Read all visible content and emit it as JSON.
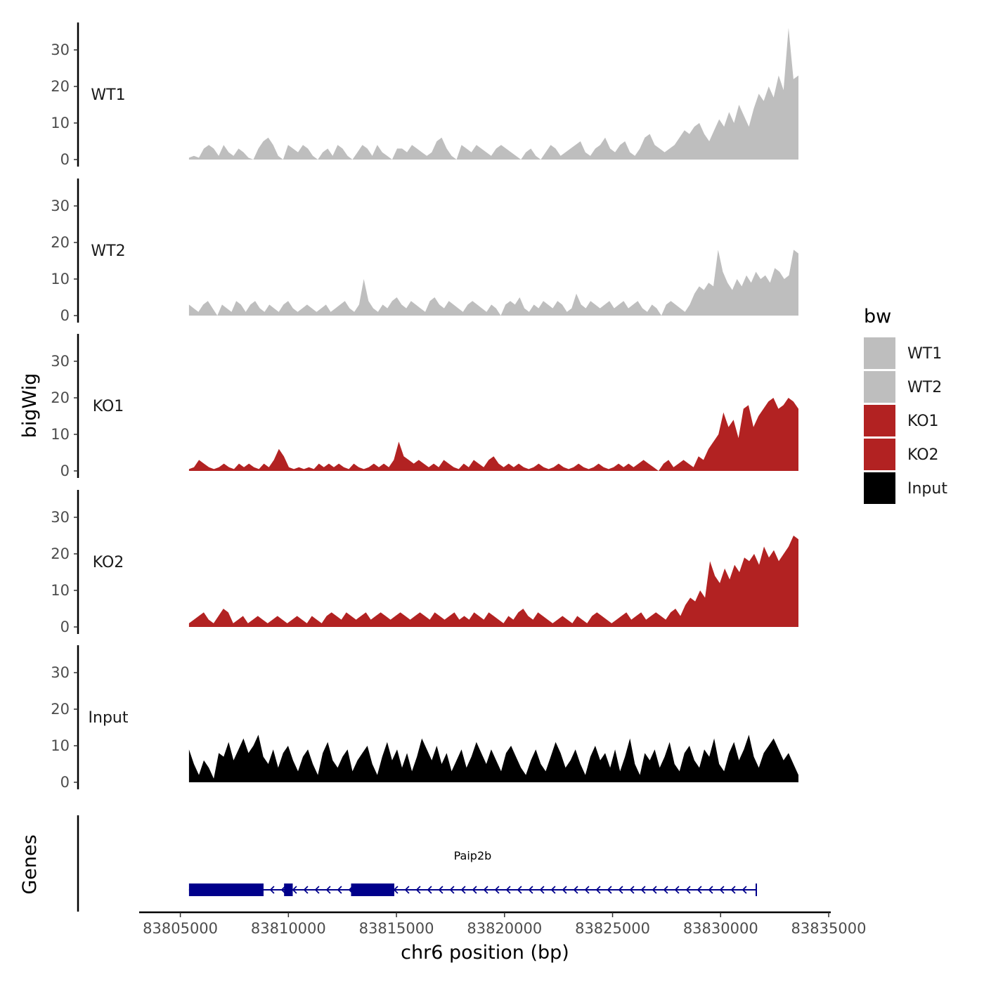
{
  "chart_data": {
    "type": "area",
    "chromosome": "chr6",
    "ylabel": "bigWig",
    "genes_label": "Genes",
    "xlabel": "chr6 position (bp)",
    "xlim": [
      83804200,
      83835000
    ],
    "ylim": [
      0,
      37
    ],
    "x_ticks": [
      83805000,
      83810000,
      83815000,
      83820000,
      83825000,
      83830000,
      83835000
    ],
    "x_tick_labels": [
      "83805000",
      "83810000",
      "83815000",
      "83820000",
      "83825000",
      "83830000",
      "83835000"
    ],
    "y_ticks": [
      0,
      10,
      20,
      30
    ],
    "y_tick_labels": [
      "0",
      "10",
      "20",
      "30"
    ],
    "track_range": [
      83805400,
      83833600
    ],
    "legend": {
      "title": "bw",
      "entries": [
        {
          "label": "WT1",
          "color": "#bebebe"
        },
        {
          "label": "WT2",
          "color": "#bebebe"
        },
        {
          "label": "KO1",
          "color": "#b22222"
        },
        {
          "label": "KO2",
          "color": "#b22222"
        },
        {
          "label": "Input",
          "color": "#000000"
        }
      ]
    },
    "tracks": [
      {
        "name": "WT1",
        "color": "#bebebe",
        "values": [
          0.5,
          1,
          0.5,
          3,
          4,
          3,
          1,
          4,
          2,
          1,
          3,
          2,
          0.5,
          0,
          3,
          5,
          6,
          4,
          1,
          0,
          4,
          3,
          2,
          4,
          3,
          1,
          0,
          2,
          3,
          1,
          4,
          3,
          1,
          0,
          2,
          4,
          3,
          1,
          4,
          2,
          1,
          0,
          3,
          3,
          2,
          4,
          3,
          2,
          1,
          2,
          5,
          6,
          3,
          1,
          0,
          4,
          3,
          2,
          4,
          3,
          2,
          1,
          3,
          4,
          3,
          2,
          1,
          0,
          2,
          3,
          1,
          0,
          2,
          4,
          3,
          1,
          2,
          3,
          4,
          5,
          2,
          1,
          3,
          4,
          6,
          3,
          2,
          4,
          5,
          2,
          1,
          3,
          6,
          7,
          4,
          3,
          2,
          3,
          4,
          6,
          8,
          7,
          9,
          10,
          7,
          5,
          8,
          11,
          9,
          13,
          10,
          15,
          12,
          9,
          14,
          18,
          16,
          20,
          17,
          23,
          19,
          36,
          22,
          23
        ]
      },
      {
        "name": "WT2",
        "color": "#bebebe",
        "values": [
          3,
          2,
          1,
          3,
          4,
          2,
          0,
          3,
          2,
          1,
          4,
          3,
          1,
          3,
          4,
          2,
          1,
          3,
          2,
          1,
          3,
          4,
          2,
          1,
          2,
          3,
          2,
          1,
          2,
          3,
          1,
          2,
          3,
          4,
          2,
          1,
          3,
          10,
          4,
          2,
          1,
          3,
          2,
          4,
          5,
          3,
          2,
          4,
          3,
          2,
          1,
          4,
          5,
          3,
          2,
          4,
          3,
          2,
          1,
          3,
          4,
          3,
          2,
          1,
          3,
          2,
          0,
          3,
          4,
          3,
          5,
          2,
          1,
          3,
          2,
          4,
          3,
          2,
          4,
          3,
          1,
          2,
          6,
          3,
          2,
          4,
          3,
          2,
          3,
          4,
          2,
          3,
          4,
          2,
          3,
          4,
          2,
          1,
          3,
          2,
          0,
          3,
          4,
          3,
          2,
          1,
          3,
          6,
          8,
          7,
          9,
          8,
          18,
          12,
          9,
          7,
          10,
          8,
          11,
          9,
          12,
          10,
          11,
          9,
          13,
          12,
          10,
          11,
          18,
          17
        ]
      },
      {
        "name": "KO1",
        "color": "#b22222",
        "values": [
          0.5,
          1,
          3,
          2,
          1,
          0.5,
          1,
          2,
          1,
          0.5,
          2,
          1,
          2,
          1,
          0.5,
          2,
          1,
          3,
          6,
          4,
          1,
          0.5,
          1,
          0.5,
          1,
          0.5,
          2,
          1,
          2,
          1,
          2,
          1,
          0.5,
          2,
          1,
          0.5,
          1,
          2,
          1,
          2,
          1,
          3,
          8,
          4,
          3,
          2,
          3,
          2,
          1,
          2,
          1,
          3,
          2,
          1,
          0.5,
          2,
          1,
          3,
          2,
          1,
          3,
          4,
          2,
          1,
          2,
          1,
          2,
          1,
          0.5,
          1,
          2,
          1,
          0.5,
          1,
          2,
          1,
          0.5,
          1,
          2,
          1,
          0.5,
          1,
          2,
          1,
          0.5,
          1,
          2,
          1,
          2,
          1,
          2,
          3,
          2,
          1,
          0,
          2,
          3,
          1,
          2,
          3,
          2,
          1,
          4,
          3,
          6,
          8,
          10,
          16,
          12,
          14,
          9,
          17,
          18,
          12,
          15,
          17,
          19,
          20,
          17,
          18,
          20,
          19,
          17
        ]
      },
      {
        "name": "KO2",
        "color": "#b22222",
        "values": [
          1,
          2,
          3,
          4,
          2,
          1,
          3,
          5,
          4,
          1,
          2,
          3,
          1,
          2,
          3,
          2,
          1,
          2,
          3,
          2,
          1,
          2,
          3,
          2,
          1,
          3,
          2,
          1,
          3,
          4,
          3,
          2,
          4,
          3,
          2,
          3,
          4,
          2,
          3,
          4,
          3,
          2,
          3,
          4,
          3,
          2,
          3,
          4,
          3,
          2,
          4,
          3,
          2,
          3,
          4,
          2,
          3,
          2,
          4,
          3,
          2,
          4,
          3,
          2,
          1,
          3,
          2,
          4,
          5,
          3,
          2,
          4,
          3,
          2,
          1,
          2,
          3,
          2,
          1,
          3,
          2,
          1,
          3,
          4,
          3,
          2,
          1,
          2,
          3,
          4,
          2,
          3,
          4,
          2,
          3,
          4,
          3,
          2,
          4,
          5,
          3,
          6,
          8,
          7,
          10,
          8,
          18,
          14,
          12,
          16,
          13,
          17,
          15,
          19,
          18,
          20,
          17,
          22,
          19,
          21,
          18,
          20,
          22,
          25,
          24
        ]
      },
      {
        "name": "Input",
        "color": "#000000",
        "values": [
          9,
          5,
          2,
          6,
          4,
          1,
          8,
          7,
          11,
          6,
          9,
          12,
          8,
          10,
          13,
          7,
          5,
          9,
          4,
          8,
          10,
          6,
          3,
          7,
          9,
          5,
          2,
          8,
          11,
          6,
          4,
          7,
          9,
          3,
          6,
          8,
          10,
          5,
          2,
          7,
          11,
          6,
          9,
          4,
          8,
          3,
          7,
          12,
          9,
          6,
          10,
          5,
          8,
          3,
          6,
          9,
          4,
          7,
          11,
          8,
          5,
          9,
          6,
          3,
          8,
          10,
          7,
          4,
          2,
          6,
          9,
          5,
          3,
          7,
          11,
          8,
          4,
          6,
          9,
          5,
          2,
          7,
          10,
          6,
          8,
          4,
          9,
          3,
          7,
          12,
          5,
          2,
          8,
          6,
          9,
          4,
          7,
          11,
          5,
          3,
          8,
          10,
          6,
          4,
          9,
          7,
          12,
          5,
          3,
          8,
          11,
          6,
          9,
          13,
          7,
          4,
          8,
          10,
          12,
          9,
          6,
          8,
          5,
          2
        ]
      }
    ],
    "genes": [
      {
        "name": "Paip2b",
        "strand": "-",
        "start": 83805400,
        "end": 83831650,
        "exons": [
          [
            83805400,
            83808850
          ],
          [
            83809800,
            83810200
          ],
          [
            83812900,
            83814900
          ]
        ]
      }
    ]
  }
}
